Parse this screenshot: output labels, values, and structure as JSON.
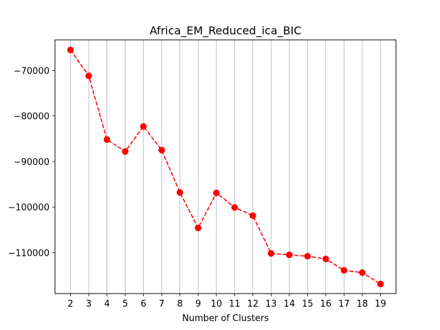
{
  "chart_data": {
    "type": "line",
    "title": "Africa_EM_Reduced_ica_BIC",
    "xlabel": "Number of Clusters",
    "ylabel": "",
    "x": [
      2,
      3,
      4,
      5,
      6,
      7,
      8,
      9,
      10,
      11,
      12,
      13,
      14,
      15,
      16,
      17,
      18,
      19
    ],
    "xticks": [
      "2",
      "3",
      "4",
      "5",
      "6",
      "7",
      "8",
      "9",
      "10",
      "11",
      "12",
      "13",
      "14",
      "15",
      "16",
      "17",
      "18",
      "19"
    ],
    "yticks": [
      -70000,
      -80000,
      -90000,
      -100000,
      -110000
    ],
    "ytick_labels": [
      "−70000",
      "−80000",
      "−90000",
      "−100000",
      "−110000"
    ],
    "xlim": [
      1.15,
      19.85
    ],
    "ylim": [
      -119000,
      -63300
    ],
    "grid": "vertical",
    "series": [
      {
        "values": [
          -65500,
          -71200,
          -85200,
          -87800,
          -82300,
          -87500,
          -96800,
          -104600,
          -96900,
          -100100,
          -101900,
          -110200,
          -110500,
          -110800,
          -111400,
          -113900,
          -114400,
          -116900
        ],
        "color": "#ff0000",
        "line_style": "dashed",
        "marker": "circle"
      }
    ]
  }
}
